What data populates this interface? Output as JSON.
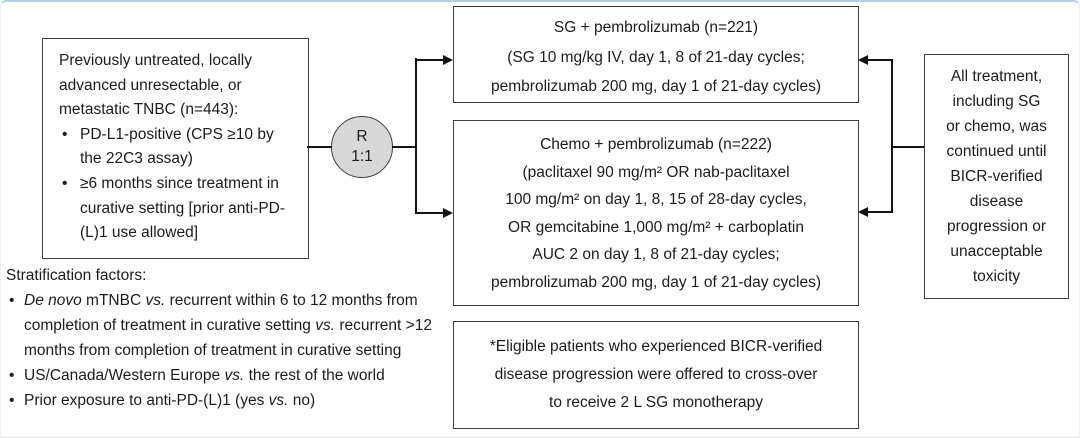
{
  "population_box": {
    "intro": "Previously untreated, locally advanced unresectable, or metastatic TNBC (n=443):",
    "bullets": [
      "PD-L1-positive (CPS ≥10 by the 22C3 assay)",
      "≥6 months since treatment in curative setting [prior anti-PD-(L)1 use allowed]"
    ]
  },
  "randomization": {
    "letter": "R",
    "ratio": "1:1"
  },
  "sg_arm_box": {
    "lines": [
      "SG + pembrolizumab (n=221)",
      "(SG 10 mg/kg IV, day 1, 8 of 21-day cycles;",
      "pembrolizumab 200 mg, day 1 of 21-day cycles)"
    ]
  },
  "chemo_arm_box": {
    "lines": [
      "Chemo + pembrolizumab (n=222)",
      "(paclitaxel 90 mg/m² OR nab-paclitaxel",
      "100 mg/m² on day 1, 8, 15 of 28-day cycles,",
      "OR gemcitabine 1,000 mg/m² + carboplatin",
      "AUC 2 on day 1, 8 of 21-day cycles;",
      "pembrolizumab 200 mg, day 1 of 21-day cycles)"
    ]
  },
  "treatment_duration_box": {
    "lines": [
      "All treatment,",
      "including SG",
      "or chemo, was",
      "continued until",
      "BICR-verified",
      "disease",
      "progression or",
      "unacceptable",
      "toxicity"
    ]
  },
  "crossover_box": {
    "lines": [
      "*Eligible patients who experienced BICR-verified",
      "disease progression were offered to cross-over",
      "to receive 2 L SG monotherapy"
    ]
  },
  "stratification": {
    "title": "Stratification factors:",
    "bullet1": [
      "De novo",
      " mTNBC ",
      "vs.",
      " recurrent within 6 to 12 months from completion of treatment in curative setting ",
      "vs.",
      " recurrent >12 months from completion of treatment in curative setting"
    ],
    "bullet2": [
      "US/Canada/Western Europe ",
      "vs.",
      " the rest of the world"
    ],
    "bullet3": [
      "Prior exposure to anti-PD-(L)1 (yes ",
      "vs.",
      " no)"
    ]
  },
  "colors": {
    "box_border": "#3f3f3f",
    "text": "#1c1c1c",
    "circle_fill": "#d8d8d8",
    "connector_line": "#141414",
    "frame_accent": "#b5cde9"
  }
}
